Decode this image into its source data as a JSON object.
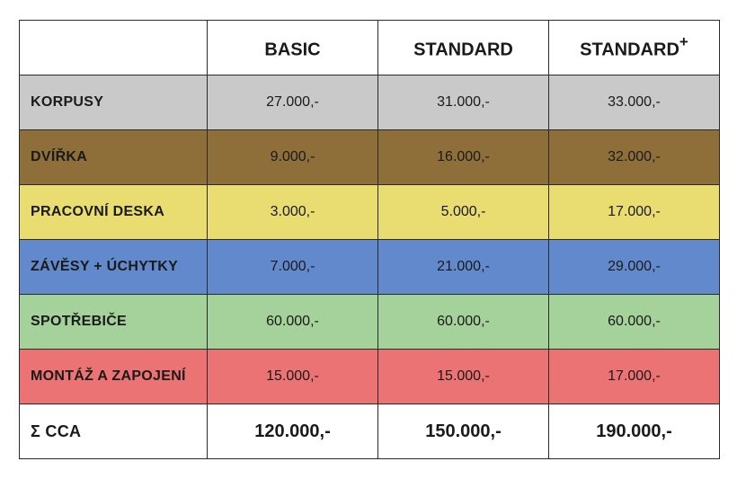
{
  "header": {
    "corner": "",
    "plans": [
      {
        "name": "BASIC",
        "suffix": ""
      },
      {
        "name": "STANDARD",
        "suffix": ""
      },
      {
        "name": "STANDARD",
        "suffix": "+"
      }
    ]
  },
  "rows": [
    {
      "label": "KORPUSY",
      "values": [
        "27.000,-",
        "31.000,-",
        "33.000,-"
      ],
      "color": "#c9c9c9"
    },
    {
      "label": "DVÍŘKA",
      "values": [
        "9.000,-",
        "16.000,-",
        "32.000,-"
      ],
      "color": "#8e6f3a"
    },
    {
      "label": "PRACOVNÍ DESKA",
      "values": [
        "3.000,-",
        "5.000,-",
        "17.000,-"
      ],
      "color": "#e9dc71"
    },
    {
      "label": "ZÁVĚSY + ÚCHYTKY",
      "values": [
        "7.000,-",
        "21.000,-",
        "29.000,-"
      ],
      "color": "#6289cb"
    },
    {
      "label": "SPOTŘEBIČE",
      "values": [
        "60.000,-",
        "60.000,-",
        "60.000,-"
      ],
      "color": "#a5d19a"
    },
    {
      "label": "MONTÁŽ A ZAPOJENÍ",
      "values": [
        "15.000,-",
        "15.000,-",
        "17.000,-"
      ],
      "color": "#eb7373"
    }
  ],
  "total": {
    "label": "Σ CCA",
    "values": [
      "120.000,-",
      "150.000,-",
      "190.000,-"
    ]
  }
}
